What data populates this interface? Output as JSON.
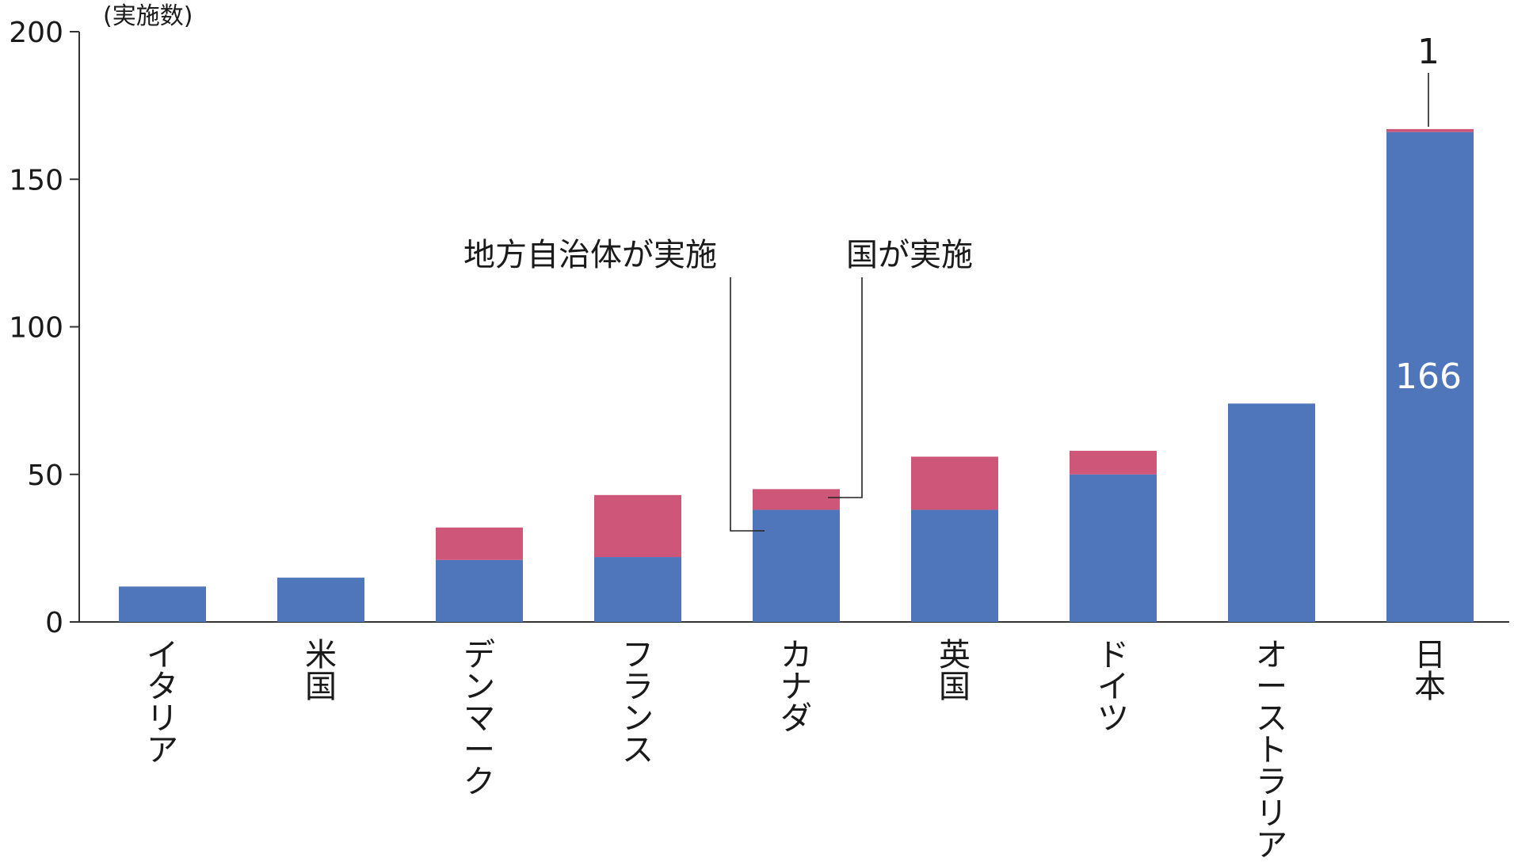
{
  "chart_data": {
    "type": "bar",
    "stacked": true,
    "categories": [
      "イタリア",
      "米国",
      "デンマーク",
      "フランス",
      "カナダ",
      "英国",
      "ドイツ",
      "オーストラリア",
      "日本"
    ],
    "series": [
      {
        "name": "地方自治体が実施",
        "color": "#4f76bb",
        "values": [
          12,
          15,
          21,
          22,
          38,
          38,
          50,
          74,
          166
        ]
      },
      {
        "name": "国が実施",
        "color": "#cd5679",
        "values": [
          0,
          0,
          11,
          21,
          7,
          18,
          8,
          0,
          1
        ]
      }
    ],
    "ylabel": "(実施数)",
    "ylim": [
      0,
      200
    ],
    "yticks": [
      0,
      50,
      100,
      150,
      200
    ],
    "data_labels": {
      "japan_local": "166",
      "japan_national": "1"
    }
  }
}
